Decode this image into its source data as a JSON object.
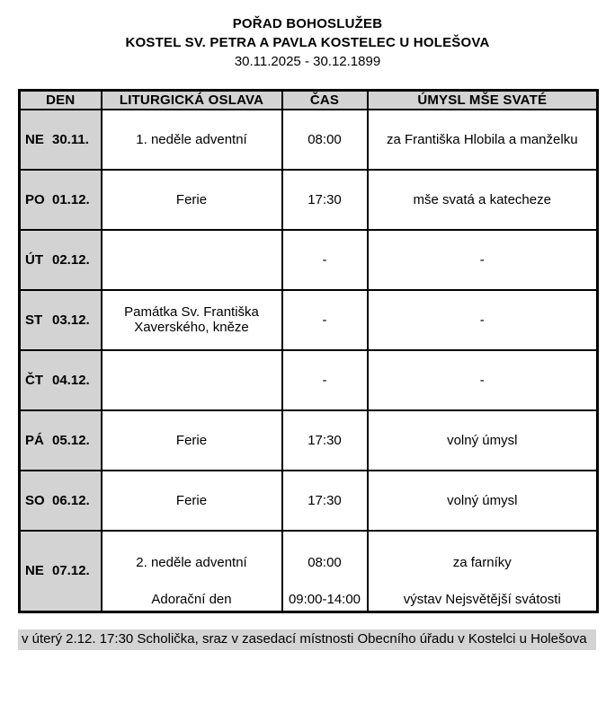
{
  "page": {
    "title": "POŘAD BOHOSLUŽEB",
    "subtitle": "KOSTEL SV. PETRA A PAVLA KOSTELEC U HOLEŠOVA",
    "date_range": "30.11.2025 - 30.12.1899"
  },
  "table": {
    "headers": [
      "DEN",
      "LITURGICKÁ OSLAVA",
      "ČAS",
      "ÚMYSL MŠE SVATÉ"
    ],
    "rows": [
      {
        "day": "NE",
        "date": "30.11.",
        "celebration": "1. neděle adventní",
        "time": "08:00",
        "intention": "za Františka Hlobila a manželku"
      },
      {
        "day": "PO",
        "date": "01.12.",
        "celebration": "Ferie",
        "time": "17:30",
        "intention": "mše svatá a katecheze"
      },
      {
        "day": "ÚT",
        "date": "02.12.",
        "celebration": "",
        "time": "-",
        "intention": "-"
      },
      {
        "day": "ST",
        "date": "03.12.",
        "celebration": "Památka Sv. Františka Xaverského, kněze",
        "time": "-",
        "intention": "-"
      },
      {
        "day": "ČT",
        "date": "04.12.",
        "celebration": "",
        "time": "-",
        "intention": "-"
      },
      {
        "day": "PÁ",
        "date": "05.12.",
        "celebration": "Ferie",
        "time": "17:30",
        "intention": "volný úmysl"
      },
      {
        "day": "SO",
        "date": "06.12.",
        "celebration": "Ferie",
        "time": "17:30",
        "intention": "volný úmysl"
      },
      {
        "day": "NE",
        "date": "07.12.",
        "celebration": "2. neděle adventní",
        "time": "08:00",
        "intention": "za farníky",
        "celebration2": "Adorační den",
        "time2": "09:00-14:00",
        "intention2": "výstav Nejsvětější svátosti"
      }
    ]
  },
  "footer_note": "v úterý 2.12. 17:30 Scholička, sraz v zasedací místnosti Obecního úřadu v Kostelci u Holešova",
  "colors": {
    "cell_bg_gray": "#d3d3d3",
    "border": "#000000",
    "text": "#000000",
    "page_bg": "#ffffff"
  }
}
